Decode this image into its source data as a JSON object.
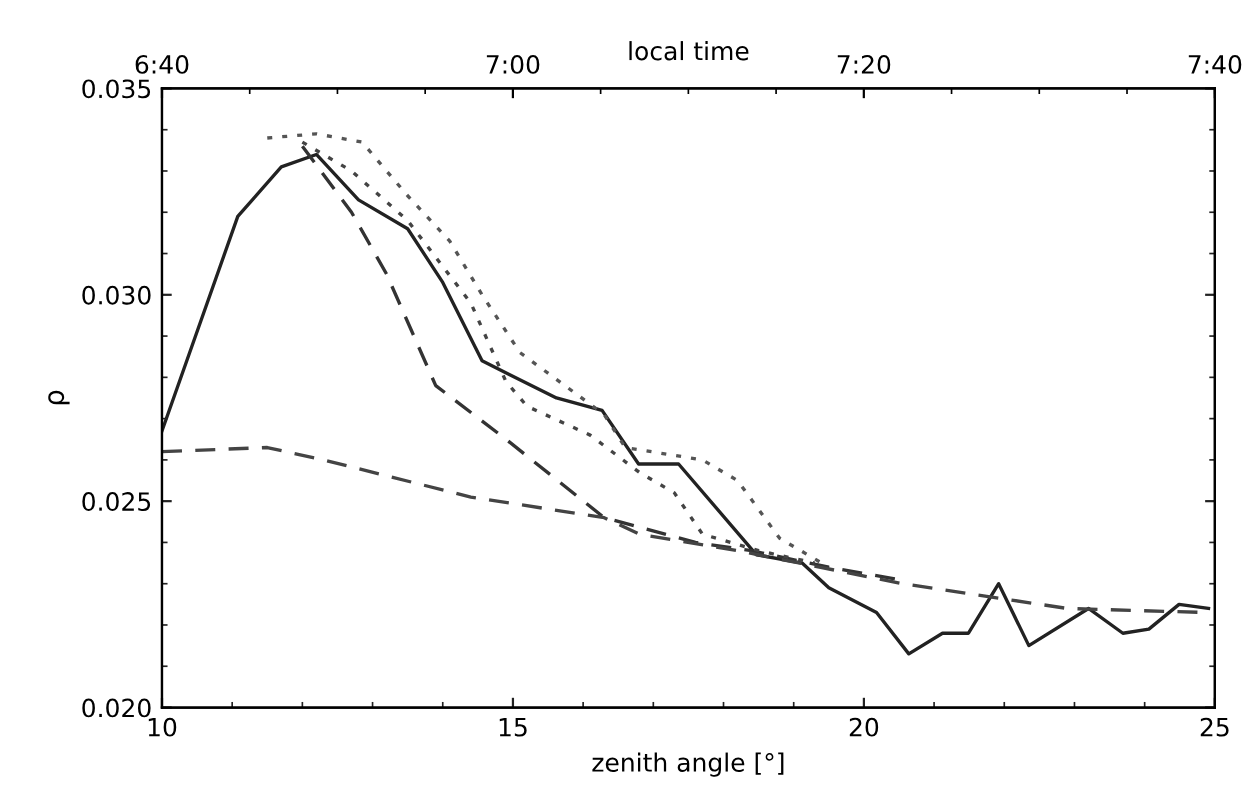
{
  "chart_data": {
    "type": "line",
    "xlabel": "zenith angle [°]",
    "ylabel": "ρ",
    "x2label": "local time",
    "xlim": [
      10,
      25
    ],
    "xticks": [
      10,
      15,
      20,
      25
    ],
    "x2lim": [
      6.6667,
      7.6667
    ],
    "x2ticks": [
      {
        "value": 6.6667,
        "label": "6:40"
      },
      {
        "value": 7.0,
        "label": "7:00"
      },
      {
        "value": 7.3333,
        "label": "7:20"
      },
      {
        "value": 7.6667,
        "label": "7:40"
      }
    ],
    "ylim": [
      0.02,
      0.035
    ],
    "yticks": [
      {
        "value": 0.02,
        "label": "0.020"
      },
      {
        "value": 0.025,
        "label": "0.025"
      },
      {
        "value": 0.03,
        "label": "0.030"
      },
      {
        "value": 0.035,
        "label": "0.035"
      }
    ],
    "grid": false,
    "marker": "none",
    "series": [
      {
        "color": "#222222",
        "line_style": "solid",
        "x": [
          10,
          11.08,
          11.7,
          12.2,
          12.8,
          13.5,
          14.0,
          14.56,
          15.62,
          16.27,
          16.79,
          17.36,
          18.47,
          19.12,
          19.5,
          20.18,
          20.64,
          21.12,
          21.49,
          21.92,
          22.35,
          23.2,
          23.69,
          24.06,
          24.49,
          24.91
        ],
        "values": [
          0.0267,
          0.0319,
          0.0331,
          0.0334,
          0.0323,
          0.0316,
          0.0303,
          0.0284,
          0.0275,
          0.0272,
          0.0259,
          0.0259,
          0.0237,
          0.0235,
          0.0229,
          0.0223,
          0.0213,
          0.0218,
          0.0218,
          0.023,
          0.0215,
          0.0224,
          0.0218,
          0.0219,
          0.0225,
          0.0224
        ]
      },
      {
        "color": "#333333",
        "line_style": "dashed",
        "x": [
          12.0,
          12.7,
          13.2,
          13.9,
          14.9,
          16.3,
          17.6,
          18.4,
          19.5,
          20.5
        ],
        "values": [
          0.0336,
          0.032,
          0.0305,
          0.0278,
          0.0265,
          0.0246,
          0.024,
          0.0238,
          0.0234,
          0.0231
        ]
      },
      {
        "color": "#444444",
        "line_style": "dotted",
        "x": [
          12.0,
          12.7,
          13.5,
          14.4,
          14.9,
          15.2,
          16.1,
          16.8,
          17.3,
          17.7,
          18.5,
          19.3
        ],
        "values": [
          0.0337,
          0.033,
          0.0318,
          0.0298,
          0.0279,
          0.0273,
          0.0266,
          0.0257,
          0.0252,
          0.0242,
          0.0238,
          0.0235
        ]
      },
      {
        "color": "#555555",
        "line_style": "dotted",
        "x": [
          11.5,
          12.2,
          12.85,
          13.5,
          14.1,
          14.56,
          15.1,
          16.3,
          16.6,
          17.7,
          18.2,
          18.8,
          19.4
        ],
        "values": [
          0.0338,
          0.0339,
          0.0337,
          0.0324,
          0.0313,
          0.03,
          0.0286,
          0.0271,
          0.0263,
          0.026,
          0.0255,
          0.0241,
          0.0235
        ]
      },
      {
        "color": "#444444",
        "line_style": "dashed",
        "x": [
          10,
          11.5,
          12.3,
          14.4,
          16.3,
          16.8,
          18.2,
          20.55,
          22.9,
          24.9
        ],
        "values": [
          0.0262,
          0.0263,
          0.026,
          0.0251,
          0.0246,
          0.0242,
          0.0238,
          0.023,
          0.0224,
          0.0223
        ]
      }
    ]
  }
}
